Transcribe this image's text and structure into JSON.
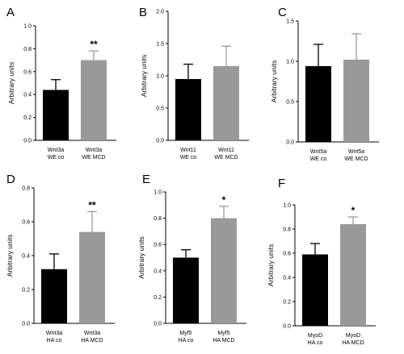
{
  "colors": {
    "control": "#000000",
    "treated": "#999999",
    "axis": "#000000"
  },
  "chart_data": [
    {
      "type": "bar",
      "panel": "A",
      "ylabel": "Arbitrary units",
      "ylim": [
        0,
        1.0
      ],
      "ticks": [
        0,
        0.2,
        0.4,
        0.6,
        0.8,
        1.0
      ],
      "tick_labels": [
        "0.0",
        "0.2",
        "0.4",
        "0.6",
        "0.8",
        "1.0"
      ],
      "categories": [
        [
          "Wnt3a",
          "WE co"
        ],
        [
          "Wnt3a",
          "WE MCD"
        ]
      ],
      "values": [
        0.44,
        0.7
      ],
      "errors": [
        0.09,
        0.08
      ],
      "significance": [
        "",
        "**"
      ]
    },
    {
      "type": "bar",
      "panel": "B",
      "ylabel": "Arbitrary units",
      "ylim": [
        0,
        2.0
      ],
      "ticks": [
        0,
        0.5,
        1.0,
        1.5,
        2.0
      ],
      "tick_labels": [
        "0.0",
        "0.5",
        "1.0",
        "1.5",
        "2.0"
      ],
      "categories": [
        [
          "Wnt11",
          "WE co"
        ],
        [
          "Wnt11",
          "WE MCD"
        ]
      ],
      "values": [
        0.95,
        1.15
      ],
      "errors": [
        0.23,
        0.31
      ],
      "significance": [
        "",
        ""
      ]
    },
    {
      "type": "bar",
      "panel": "C",
      "ylabel": "Arbitrary units",
      "ylim": [
        0,
        1.5
      ],
      "ticks": [
        0,
        0.5,
        1.0,
        1.5
      ],
      "tick_labels": [
        "0.0",
        "0.5",
        "1.0",
        "1.5"
      ],
      "categories": [
        [
          "Wnt5a",
          "WE co"
        ],
        [
          "Wnt5a",
          "WE MCD"
        ]
      ],
      "values": [
        0.94,
        1.02
      ],
      "errors": [
        0.27,
        0.32
      ],
      "significance": [
        "",
        ""
      ]
    },
    {
      "type": "bar",
      "panel": "D",
      "ylabel": "Arbitrary units",
      "ylim": [
        0,
        0.8
      ],
      "ticks": [
        0,
        0.2,
        0.4,
        0.6,
        0.8
      ],
      "tick_labels": [
        "0.0",
        "0.2",
        "0.4",
        "0.6",
        "0.8"
      ],
      "categories": [
        [
          "Wnt3a",
          "HA co"
        ],
        [
          "Wnt3a",
          "HA MCD"
        ]
      ],
      "values": [
        0.32,
        0.54
      ],
      "errors": [
        0.09,
        0.12
      ],
      "significance": [
        "",
        "**"
      ]
    },
    {
      "type": "bar",
      "panel": "E",
      "ylabel": "Arbitrary units",
      "ylim": [
        0,
        1.0
      ],
      "ticks": [
        0,
        0.2,
        0.4,
        0.6,
        0.8,
        1.0
      ],
      "tick_labels": [
        "0.0",
        "0.2",
        "0.4",
        "0.6",
        "0.8",
        "1.0"
      ],
      "categories": [
        [
          "Myf5",
          "HA co"
        ],
        [
          "Myf5",
          "HA MCD"
        ]
      ],
      "values": [
        0.5,
        0.8
      ],
      "errors": [
        0.06,
        0.09
      ],
      "significance": [
        "",
        "*"
      ]
    },
    {
      "type": "bar",
      "panel": "F",
      "ylabel": "Arbitrary units",
      "ylim": [
        0,
        1.0
      ],
      "ticks": [
        0,
        0.2,
        0.4,
        0.6,
        0.8,
        1.0
      ],
      "tick_labels": [
        "0.0",
        "0.2",
        "0.4",
        "0.6",
        "0.8",
        "1.0"
      ],
      "categories": [
        [
          "MyoD",
          "HA co"
        ],
        [
          "MyoD",
          "HA MCD"
        ]
      ],
      "values": [
        0.59,
        0.84
      ],
      "errors": [
        0.09,
        0.06
      ],
      "significance": [
        "",
        "*"
      ]
    }
  ]
}
